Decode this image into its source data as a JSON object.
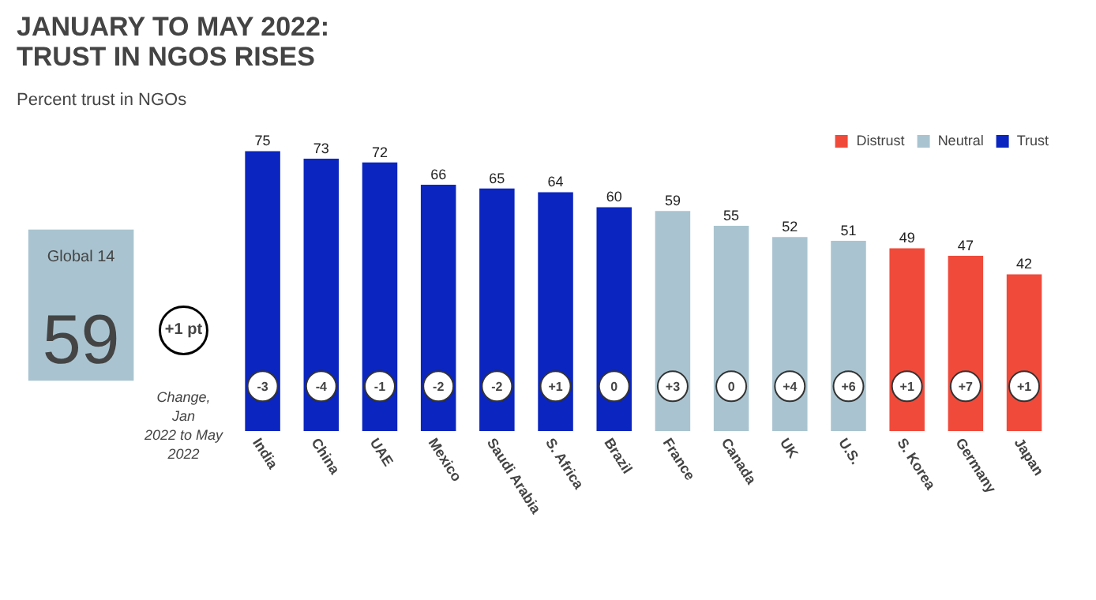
{
  "chart_data": {
    "type": "bar",
    "title": "JANUARY TO MAY 2022:\nTRUST IN NGOS RISES",
    "subtitle": "Percent trust in NGOs",
    "categories": [
      "India",
      "China",
      "UAE",
      "Mexico",
      "Saudi Arabia",
      "S. Africa",
      "Brazil",
      "France",
      "Canada",
      "UK",
      "U.S.",
      "S. Korea",
      "Germany",
      "Japan"
    ],
    "series": [
      {
        "name": "Distrust",
        "color": "#f04a3a",
        "values": [
          null,
          null,
          null,
          null,
          null,
          null,
          null,
          null,
          null,
          null,
          null,
          49,
          47,
          42
        ]
      },
      {
        "name": "Neutral",
        "color": "#a9c4d0",
        "values": [
          null,
          null,
          null,
          null,
          null,
          null,
          null,
          59,
          55,
          52,
          51,
          null,
          null,
          null
        ]
      },
      {
        "name": "Trust",
        "color": "#0a25c0",
        "values": [
          75,
          73,
          72,
          66,
          65,
          64,
          60,
          null,
          null,
          null,
          null,
          null,
          null,
          null
        ]
      }
    ],
    "data_labels": true,
    "legend": "top right",
    "grid": false,
    "annotations": [
      "Global 14",
      "59",
      "+1 pt",
      "Change, Jan 2022 to May 2022",
      "-3",
      "-4",
      "-1",
      "-2",
      "-2",
      "+1",
      "0",
      "+3",
      "0",
      "+4",
      "+6",
      "+1",
      "+7",
      "+1"
    ]
  }
}
